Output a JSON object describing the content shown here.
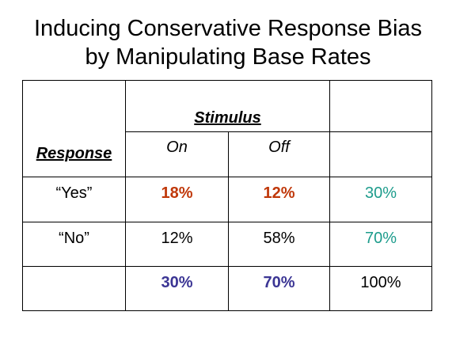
{
  "slide": {
    "title_line1": "Inducing Conservative Response Bias",
    "title_line2": "by Manipulating Base Rates"
  },
  "table": {
    "stimulus_header": "Stimulus",
    "response_header": "Response",
    "columns": [
      "On",
      "Off"
    ],
    "rows": [
      {
        "label": "“Yes”",
        "on": "18%",
        "off": "12%",
        "total": "30%"
      },
      {
        "label": "“No”",
        "on": "12%",
        "off": "58%",
        "total": "70%"
      }
    ],
    "column_totals": {
      "on": "30%",
      "off": "70%",
      "grand": "100%"
    }
  },
  "colors": {
    "hit_cells": "#c0380a",
    "row_totals": "#1d9c8c",
    "column_totals": "#3b3594"
  }
}
